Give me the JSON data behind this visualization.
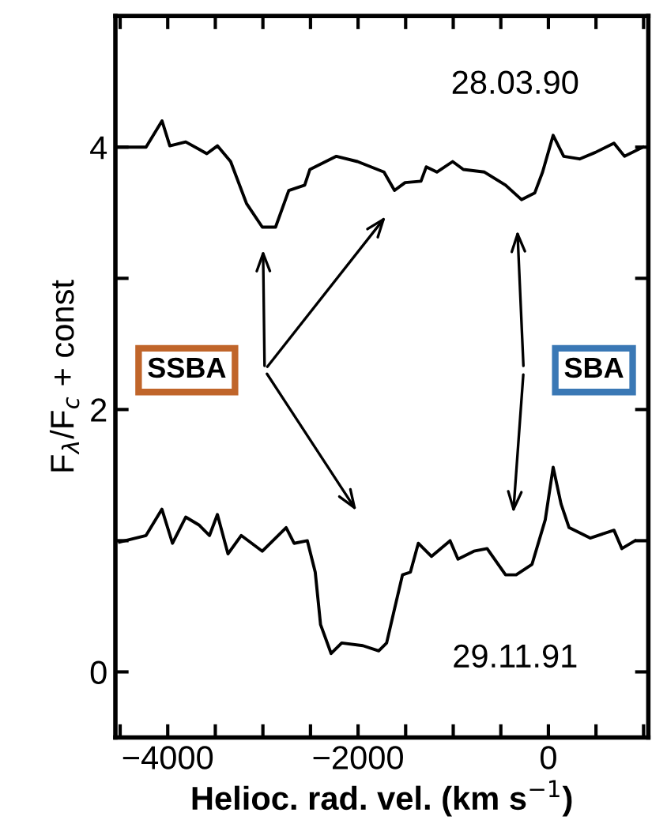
{
  "chart_data": {
    "type": "line",
    "xlabel": "Helioc. rad. vel. (km s$^{−1}$)",
    "ylabel": "F$_{λ}$/F$_{c}$ + const",
    "series": [
      {
        "color": "#000000",
        "x": [
          -4533,
          -4228,
          -4060,
          -3978,
          -3811,
          -3589,
          -3478,
          -3339,
          -3172,
          -3006,
          -2867,
          -2728,
          -2561,
          -2506,
          -2228,
          -2006,
          -1728,
          -1617,
          -1506,
          -1339,
          -1283,
          -1172,
          -1006,
          -894,
          -672,
          -450,
          -283,
          -144,
          -61,
          50,
          161,
          328,
          494,
          689,
          800,
          994
        ],
        "values": [
          4.0,
          4.0,
          4.2,
          4.01,
          4.04,
          3.95,
          4.01,
          3.89,
          3.57,
          3.39,
          3.39,
          3.67,
          3.71,
          3.83,
          3.93,
          3.89,
          3.81,
          3.67,
          3.73,
          3.74,
          3.85,
          3.81,
          3.89,
          3.83,
          3.81,
          3.71,
          3.6,
          3.65,
          3.81,
          4.09,
          3.93,
          3.91,
          3.96,
          4.03,
          3.93,
          4.0
        ]
      },
      {
        "color": "#000000",
        "x": [
          -4506,
          -4228,
          -4061,
          -3950,
          -3811,
          -3672,
          -3561,
          -3478,
          -3367,
          -3228,
          -3006,
          -2756,
          -2672,
          -2533,
          -2450,
          -2394,
          -2283,
          -2172,
          -1950,
          -1783,
          -1700,
          -1617,
          -1533,
          -1450,
          -1367,
          -1228,
          -1033,
          -950,
          -783,
          -644,
          -450,
          -339,
          -172,
          -33,
          50,
          133,
          217,
          439,
          689,
          772,
          911
        ],
        "values": [
          0.99,
          1.04,
          1.24,
          0.98,
          1.18,
          1.12,
          1.04,
          1.2,
          0.9,
          1.04,
          0.92,
          1.1,
          0.98,
          1.0,
          0.76,
          0.36,
          0.14,
          0.22,
          0.2,
          0.16,
          0.22,
          0.48,
          0.74,
          0.76,
          0.98,
          0.88,
          1.0,
          0.86,
          0.92,
          0.94,
          0.74,
          0.74,
          0.82,
          1.16,
          1.56,
          1.28,
          1.1,
          1.02,
          1.08,
          0.94,
          1.0
        ]
      }
    ],
    "xlim": [
      -4550,
      1050
    ],
    "ylim": [
      -0.5,
      5
    ],
    "xticks": [
      {
        "value": -4500,
        "label": null
      },
      -4000,
      {
        "value": -3500,
        "label": null
      },
      {
        "value": -3000,
        "label": null
      },
      {
        "value": -2500,
        "label": null
      },
      -2000,
      {
        "value": -1500,
        "label": null
      },
      {
        "value": -1000,
        "label": null
      },
      {
        "value": -500,
        "label": null
      },
      0,
      {
        "value": 500,
        "label": null
      },
      {
        "value": 1000,
        "label": null
      }
    ],
    "yticks": [
      0,
      {
        "value": 1,
        "label": null
      },
      2,
      {
        "value": 3,
        "label": null
      },
      4
    ],
    "grid": false,
    "legend": false,
    "marker": "none",
    "line_style": "solid",
    "annotations": [
      "28.03.90",
      "29.11.91",
      "SSBA",
      "SBA"
    ]
  }
}
